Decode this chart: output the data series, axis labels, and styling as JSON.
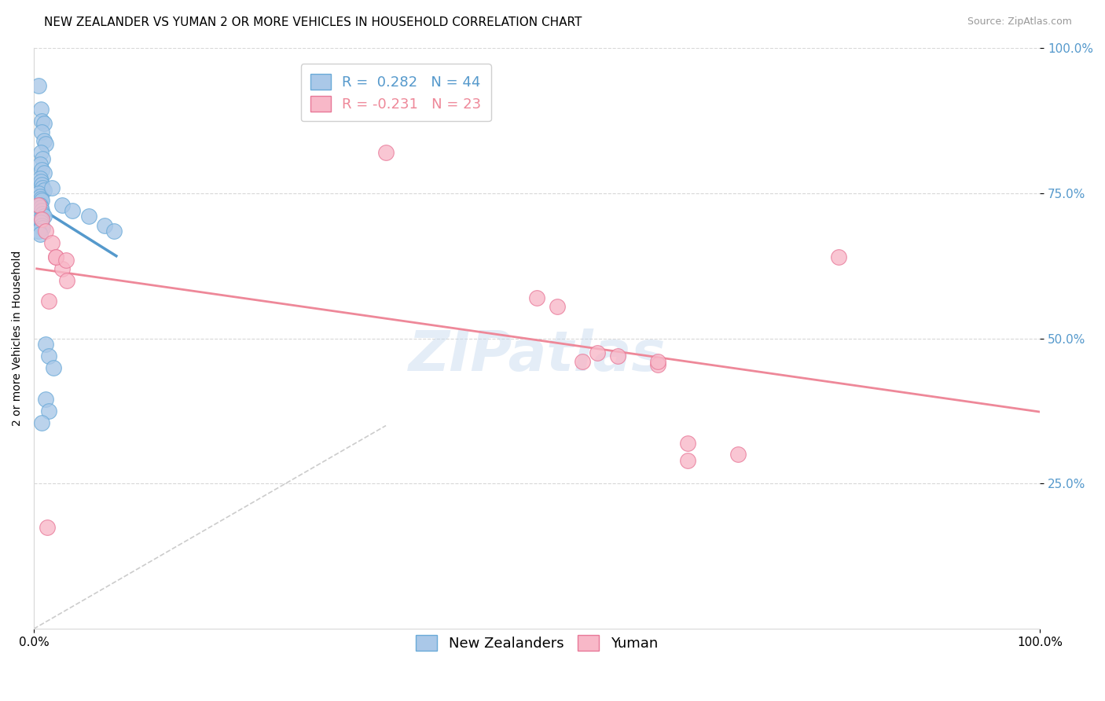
{
  "title": "NEW ZEALANDER VS YUMAN 2 OR MORE VEHICLES IN HOUSEHOLD CORRELATION CHART",
  "source": "Source: ZipAtlas.com",
  "ylabel": "2 or more Vehicles in Household",
  "xmin": 0.0,
  "xmax": 1.0,
  "ymin": 0.0,
  "ymax": 1.0,
  "watermark": "ZIPatlas",
  "legend_entries": [
    {
      "label": "R =  0.282   N = 44"
    },
    {
      "label": "R = -0.231   N = 23"
    }
  ],
  "nz_color": "#aac8e8",
  "nz_edge_color": "#6aaad8",
  "yuman_color": "#f8b8c8",
  "yuman_edge_color": "#e87898",
  "nz_line_color": "#5599cc",
  "yuman_line_color": "#ee8899",
  "diag_line_color": "#cccccc",
  "title_fontsize": 11,
  "axis_label_fontsize": 10,
  "tick_fontsize": 10,
  "legend_fontsize": 13,
  "source_fontsize": 9,
  "watermark_fontsize": 52,
  "watermark_color": "#c5d8ee",
  "watermark_alpha": 0.45,
  "nz_points": [
    [
      0.005,
      0.935
    ],
    [
      0.007,
      0.895
    ],
    [
      0.008,
      0.875
    ],
    [
      0.01,
      0.87
    ],
    [
      0.008,
      0.855
    ],
    [
      0.01,
      0.84
    ],
    [
      0.012,
      0.835
    ],
    [
      0.007,
      0.82
    ],
    [
      0.009,
      0.81
    ],
    [
      0.006,
      0.8
    ],
    [
      0.008,
      0.79
    ],
    [
      0.01,
      0.785
    ],
    [
      0.006,
      0.775
    ],
    [
      0.007,
      0.77
    ],
    [
      0.008,
      0.765
    ],
    [
      0.009,
      0.76
    ],
    [
      0.01,
      0.755
    ],
    [
      0.005,
      0.75
    ],
    [
      0.006,
      0.745
    ],
    [
      0.007,
      0.74
    ],
    [
      0.008,
      0.738
    ],
    [
      0.006,
      0.73
    ],
    [
      0.007,
      0.725
    ],
    [
      0.008,
      0.72
    ],
    [
      0.009,
      0.715
    ],
    [
      0.01,
      0.71
    ],
    [
      0.006,
      0.705
    ],
    [
      0.007,
      0.7
    ],
    [
      0.008,
      0.695
    ],
    [
      0.009,
      0.69
    ],
    [
      0.005,
      0.685
    ],
    [
      0.006,
      0.68
    ],
    [
      0.018,
      0.76
    ],
    [
      0.028,
      0.73
    ],
    [
      0.038,
      0.72
    ],
    [
      0.055,
      0.71
    ],
    [
      0.07,
      0.695
    ],
    [
      0.08,
      0.685
    ],
    [
      0.012,
      0.49
    ],
    [
      0.015,
      0.47
    ],
    [
      0.02,
      0.45
    ],
    [
      0.012,
      0.395
    ],
    [
      0.015,
      0.375
    ],
    [
      0.008,
      0.355
    ]
  ],
  "yuman_points": [
    [
      0.005,
      0.73
    ],
    [
      0.008,
      0.705
    ],
    [
      0.012,
      0.685
    ],
    [
      0.018,
      0.665
    ],
    [
      0.022,
      0.64
    ],
    [
      0.028,
      0.62
    ],
    [
      0.033,
      0.6
    ],
    [
      0.015,
      0.565
    ],
    [
      0.35,
      0.82
    ],
    [
      0.022,
      0.64
    ],
    [
      0.032,
      0.635
    ],
    [
      0.5,
      0.57
    ],
    [
      0.52,
      0.555
    ],
    [
      0.545,
      0.46
    ],
    [
      0.56,
      0.475
    ],
    [
      0.62,
      0.455
    ],
    [
      0.62,
      0.46
    ],
    [
      0.65,
      0.32
    ],
    [
      0.7,
      0.3
    ],
    [
      0.8,
      0.64
    ],
    [
      0.58,
      0.47
    ],
    [
      0.65,
      0.29
    ],
    [
      0.013,
      0.175
    ]
  ]
}
